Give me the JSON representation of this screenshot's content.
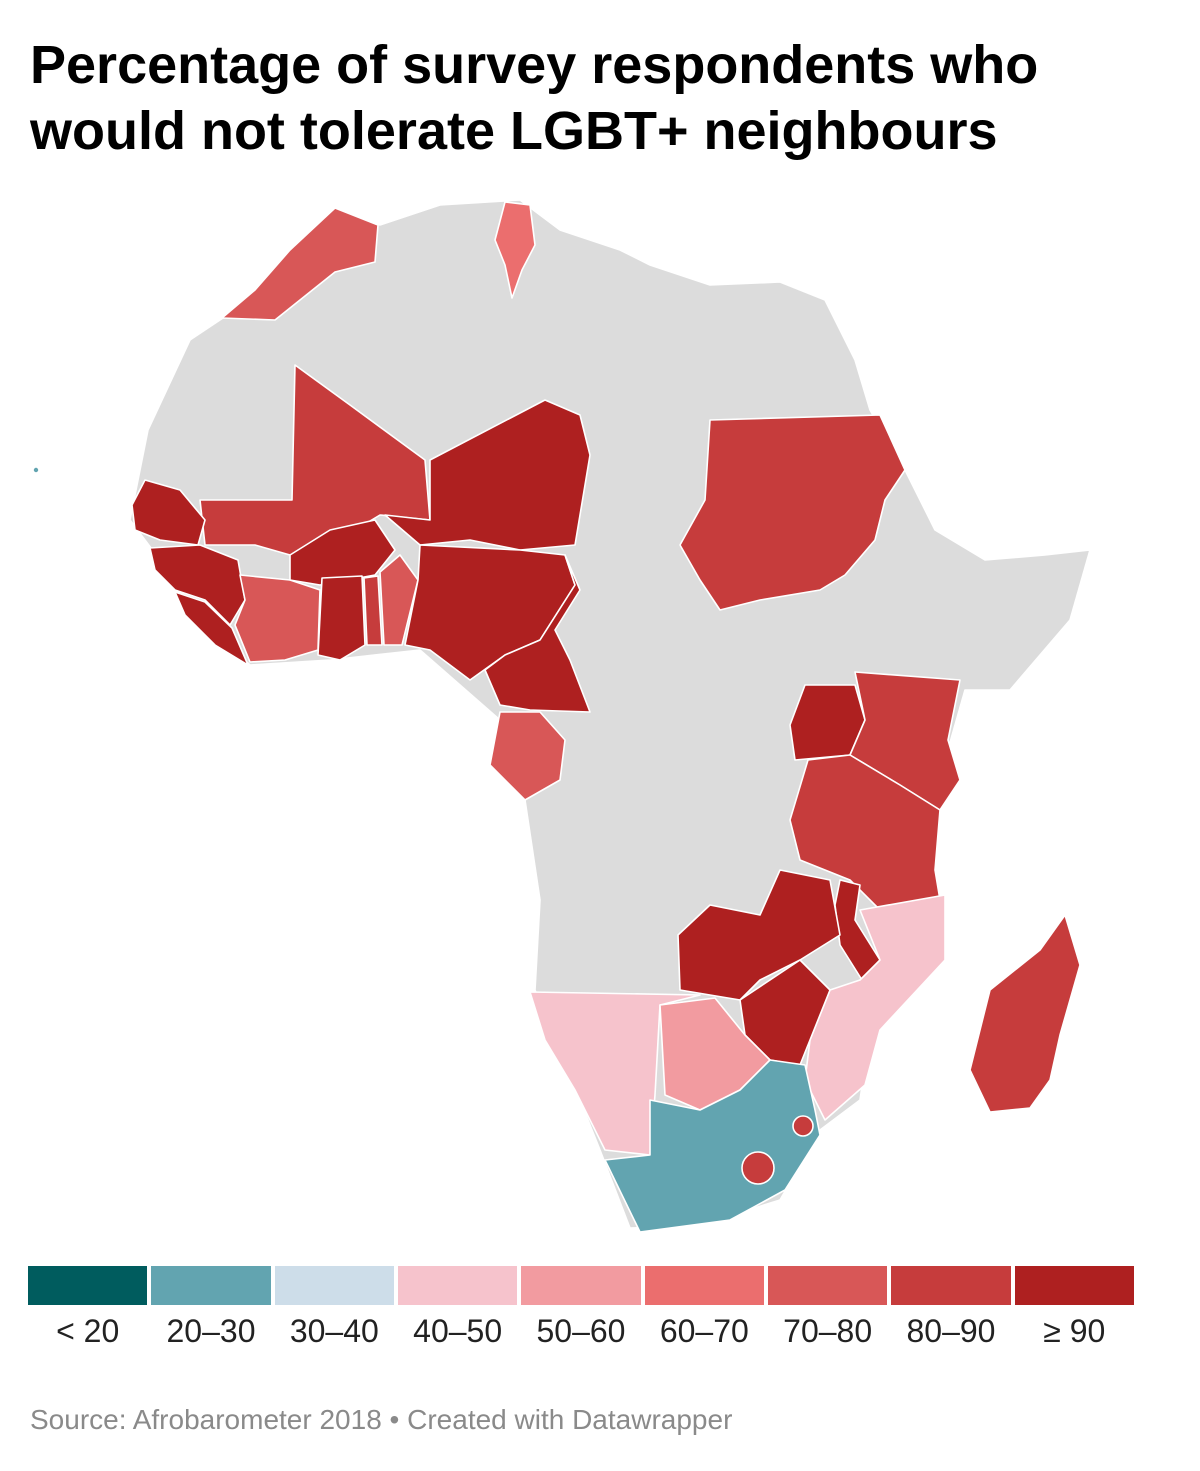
{
  "title": "Percentage of survey respondents who would not tolerate LGBT+ neighbours",
  "source": "Source: Afrobarometer 2018 • Created with Datawrapper",
  "colors": {
    "no_data": "#dcdcdc",
    "lt20": "#005c5e",
    "b20_30": "#62a4b0",
    "b30_40": "#cddde9",
    "b40_50": "#f6c3cc",
    "b50_60": "#f29ba0",
    "b60_70": "#eb6e6e",
    "b70_80": "#d85757",
    "b80_90": "#c63c3c",
    "ge90": "#ae2020"
  },
  "legend": [
    {
      "label": "< 20",
      "color": "#005c5e"
    },
    {
      "label": "20–30",
      "color": "#62a4b0"
    },
    {
      "label": "30–40",
      "color": "#cddde9"
    },
    {
      "label": "40–50",
      "color": "#f6c3cc"
    },
    {
      "label": "50–60",
      "color": "#f29ba0"
    },
    {
      "label": "60–70",
      "color": "#eb6e6e"
    },
    {
      "label": "70–80",
      "color": "#d85757"
    },
    {
      "label": "80–90",
      "color": "#c63c3c"
    },
    {
      "label": "≥ 90",
      "color": "#ae2020"
    }
  ]
}
